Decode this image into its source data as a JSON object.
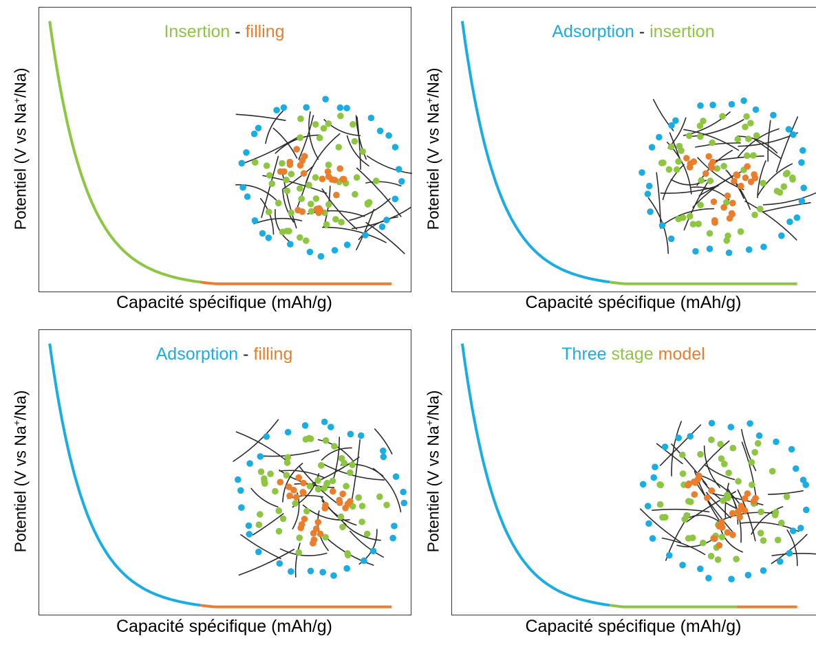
{
  "colors": {
    "adsorption": "#1AADE4",
    "insertion": "#8DC641",
    "filling": "#EA7E2D",
    "separator": "#1a1a1a",
    "carbon": "#2b2b2b"
  },
  "ylabel": {
    "prefix": "Potentiel (V vs Na",
    "sup": "+",
    "suffix": "/Na)"
  },
  "xlabel": "Capacité spécifique (mAh/g)",
  "panels": [
    {
      "title": [
        {
          "text": "Insertion",
          "color": "insertion"
        },
        {
          "text": " - ",
          "color": "separator"
        },
        {
          "text": "filling",
          "color": "filling"
        }
      ],
      "curve_segments": [
        "insertion",
        "filling"
      ]
    },
    {
      "title": [
        {
          "text": "Adsorption",
          "color": "adsorption"
        },
        {
          "text": " - ",
          "color": "separator"
        },
        {
          "text": "insertion",
          "color": "insertion"
        }
      ],
      "curve_segments": [
        "adsorption",
        "insertion"
      ]
    },
    {
      "title": [
        {
          "text": "Adsorption",
          "color": "adsorption"
        },
        {
          "text": " - ",
          "color": "separator"
        },
        {
          "text": "filling",
          "color": "filling"
        }
      ],
      "curve_segments": [
        "adsorption",
        "filling"
      ]
    },
    {
      "title": [
        {
          "text": "Three",
          "color": "adsorption"
        },
        {
          "text": " stage",
          "color": "insertion"
        },
        {
          "text": " model",
          "color": "filling"
        }
      ],
      "curve_segments": [
        "adsorption",
        "insertion",
        "filling"
      ]
    }
  ]
}
